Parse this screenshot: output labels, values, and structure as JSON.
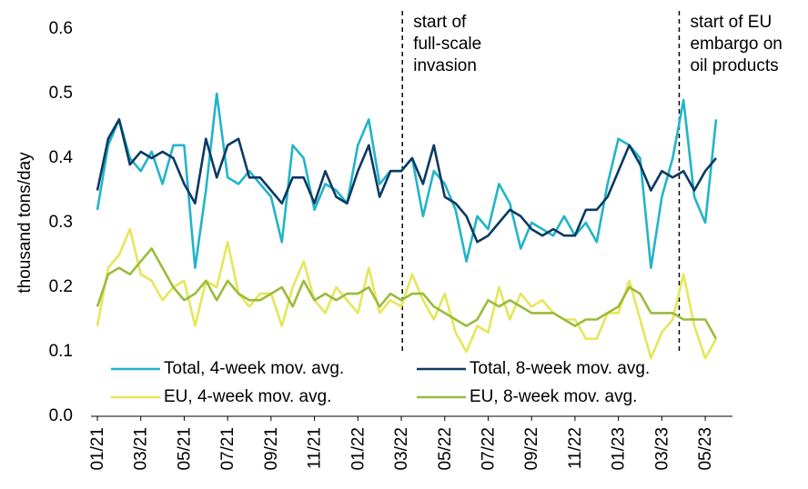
{
  "chart_data": {
    "type": "line",
    "y_label": "thousand tons/day",
    "categories": [
      "01/21",
      null,
      null,
      null,
      "03/21",
      null,
      null,
      null,
      "05/21",
      null,
      null,
      null,
      "07/21",
      null,
      null,
      null,
      "09/21",
      null,
      null,
      null,
      "11/21",
      null,
      null,
      null,
      "01/22",
      null,
      null,
      null,
      "03/22",
      null,
      null,
      null,
      "05/22",
      null,
      null,
      null,
      "07/22",
      null,
      null,
      null,
      "09/22",
      null,
      null,
      null,
      "11/22",
      null,
      null,
      null,
      "01/23",
      null,
      null,
      null,
      "03/23",
      null,
      null,
      null,
      "05/23",
      null
    ],
    "series": [
      {
        "name": "Total, 4-week mov. avg.",
        "color": "#22b4c9",
        "values": [
          0.32,
          0.42,
          0.46,
          0.4,
          0.38,
          0.41,
          0.36,
          0.42,
          0.42,
          0.23,
          0.35,
          0.5,
          0.37,
          0.36,
          0.38,
          0.36,
          0.34,
          0.27,
          0.42,
          0.4,
          0.32,
          0.36,
          0.35,
          0.33,
          0.42,
          0.46,
          0.36,
          0.38,
          0.38,
          0.4,
          0.31,
          0.38,
          0.36,
          0.32,
          0.24,
          0.31,
          0.29,
          0.36,
          0.33,
          0.26,
          0.3,
          0.29,
          0.28,
          0.31,
          0.28,
          0.3,
          0.27,
          0.36,
          0.43,
          0.42,
          0.4,
          0.23,
          0.34,
          0.4,
          0.49,
          0.34,
          0.3,
          0.46
        ]
      },
      {
        "name": "Total, 8-week mov. avg.",
        "color": "#0b3a63",
        "values": [
          0.35,
          0.43,
          0.46,
          0.39,
          0.41,
          0.4,
          0.41,
          0.4,
          0.36,
          0.33,
          0.43,
          0.37,
          0.42,
          0.43,
          0.37,
          0.37,
          0.35,
          0.33,
          0.37,
          0.37,
          0.33,
          0.38,
          0.34,
          0.33,
          0.38,
          0.42,
          0.34,
          0.38,
          0.38,
          0.4,
          0.36,
          0.42,
          0.34,
          0.33,
          0.31,
          0.27,
          0.28,
          0.3,
          0.32,
          0.31,
          0.29,
          0.28,
          0.29,
          0.28,
          0.28,
          0.32,
          0.32,
          0.34,
          0.38,
          0.42,
          0.39,
          0.35,
          0.38,
          0.37,
          0.38,
          0.35,
          0.38,
          0.4
        ]
      },
      {
        "name": "EU, 4-week mov. avg.",
        "color": "#e6e65a",
        "values": [
          0.14,
          0.23,
          0.25,
          0.29,
          0.22,
          0.21,
          0.18,
          0.2,
          0.21,
          0.14,
          0.21,
          0.2,
          0.27,
          0.19,
          0.17,
          0.19,
          0.19,
          0.14,
          0.2,
          0.24,
          0.18,
          0.16,
          0.2,
          0.18,
          0.16,
          0.23,
          0.16,
          0.18,
          0.17,
          0.22,
          0.18,
          0.15,
          0.19,
          0.13,
          0.1,
          0.14,
          0.13,
          0.2,
          0.15,
          0.19,
          0.17,
          0.18,
          0.16,
          0.15,
          0.15,
          0.12,
          0.12,
          0.16,
          0.16,
          0.21,
          0.15,
          0.09,
          0.13,
          0.15,
          0.22,
          0.14,
          0.09,
          0.12
        ]
      },
      {
        "name": "EU, 8-week mov. avg.",
        "color": "#9bbb3b",
        "values": [
          0.17,
          0.22,
          0.23,
          0.22,
          0.24,
          0.26,
          0.23,
          0.2,
          0.18,
          0.19,
          0.21,
          0.18,
          0.21,
          0.19,
          0.18,
          0.18,
          0.19,
          0.2,
          0.17,
          0.21,
          0.18,
          0.19,
          0.18,
          0.19,
          0.19,
          0.2,
          0.17,
          0.19,
          0.18,
          0.19,
          0.19,
          0.17,
          0.16,
          0.15,
          0.14,
          0.15,
          0.18,
          0.17,
          0.18,
          0.17,
          0.16,
          0.16,
          0.16,
          0.15,
          0.14,
          0.15,
          0.15,
          0.16,
          0.17,
          0.2,
          0.19,
          0.16,
          0.16,
          0.16,
          0.15,
          0.15,
          0.15,
          0.12
        ]
      }
    ],
    "ylim": [
      0,
      0.6
    ],
    "yticks": [
      {
        "value": 0,
        "label": "0.0"
      },
      0.1,
      0.2,
      0.3,
      0.4,
      0.5,
      0.6
    ],
    "legend": "bottom",
    "annotations": [
      {
        "x": 28.1,
        "text": [
          "start of",
          "full-scale",
          "invasion"
        ]
      },
      {
        "x": 53.6,
        "text": [
          "start of EU",
          "embargo on",
          "oil products"
        ]
      }
    ]
  }
}
